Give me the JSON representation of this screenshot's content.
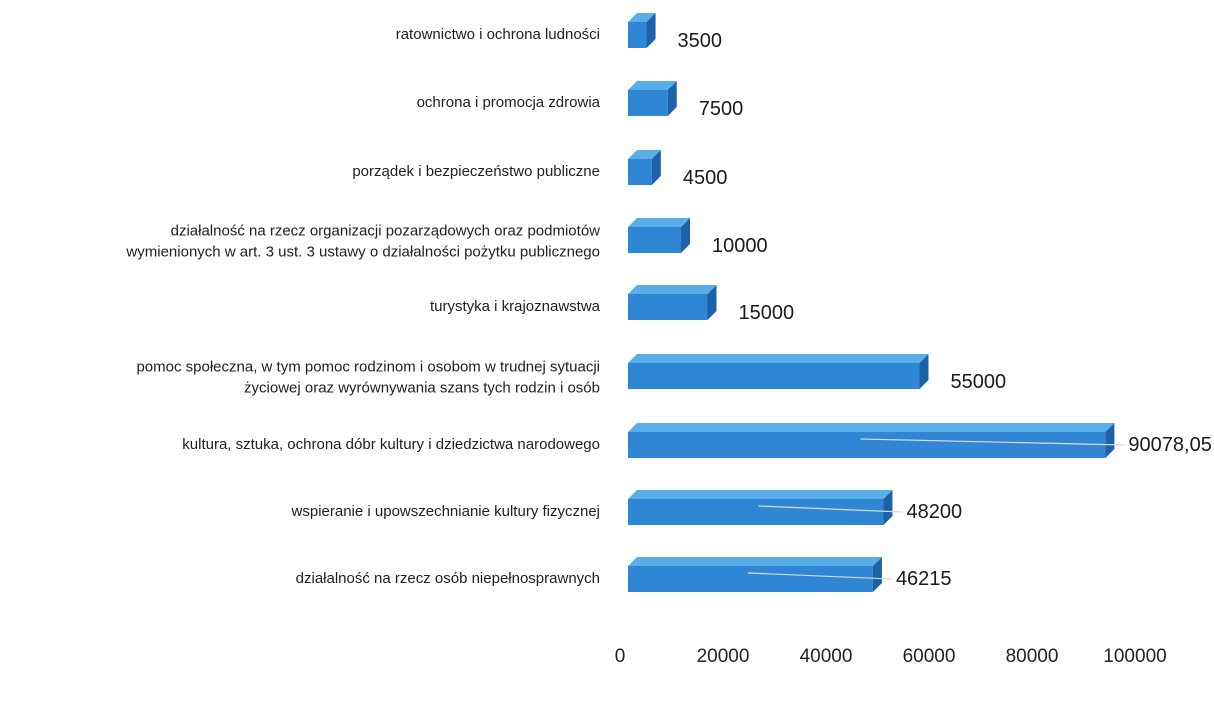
{
  "chart_data": {
    "type": "bar",
    "orientation": "horizontal",
    "style": "3d",
    "bar_color": "#2e86d4",
    "bar_side_color": "#1d62a8",
    "bar_top_color": "#5aaee8",
    "categories": [
      [
        "ratownictwo i ochrona ludności"
      ],
      [
        "ochrona i promocja zdrowia"
      ],
      [
        "porządek i bezpieczeństwo publiczne"
      ],
      [
        "działalność na rzecz organizacji pozarządowych oraz podmiotów",
        "wymienionych w art. 3 ust. 3 ustawy o działalności pożytku publicznego"
      ],
      [
        "turystyka i krajoznawstwa"
      ],
      [
        "pomoc społeczna, w tym pomoc rodzinom i osobom w trudnej sytuacji",
        "życiowej oraz wyrównywania szans tych rodzin i osób"
      ],
      [
        "kultura, sztuka, ochrona dóbr kultury i dziedzictwa narodowego"
      ],
      [
        "wspieranie i upowszechnianie kultury fizycznej"
      ],
      [
        "działalność na rzecz osób niepełnosprawnych"
      ]
    ],
    "values": [
      3500,
      7500,
      4500,
      10000,
      15000,
      55000,
      90078.05,
      48200,
      46215
    ],
    "value_labels": [
      "3500",
      "7500",
      "4500",
      "10000",
      "15000",
      "55000",
      "90078,05",
      "48200",
      "46215"
    ],
    "x_ticks": [
      "0",
      "20000",
      "40000",
      "60000",
      "80000",
      "100000"
    ],
    "xlim": [
      0,
      100000
    ],
    "grid": false,
    "legend": "none"
  }
}
